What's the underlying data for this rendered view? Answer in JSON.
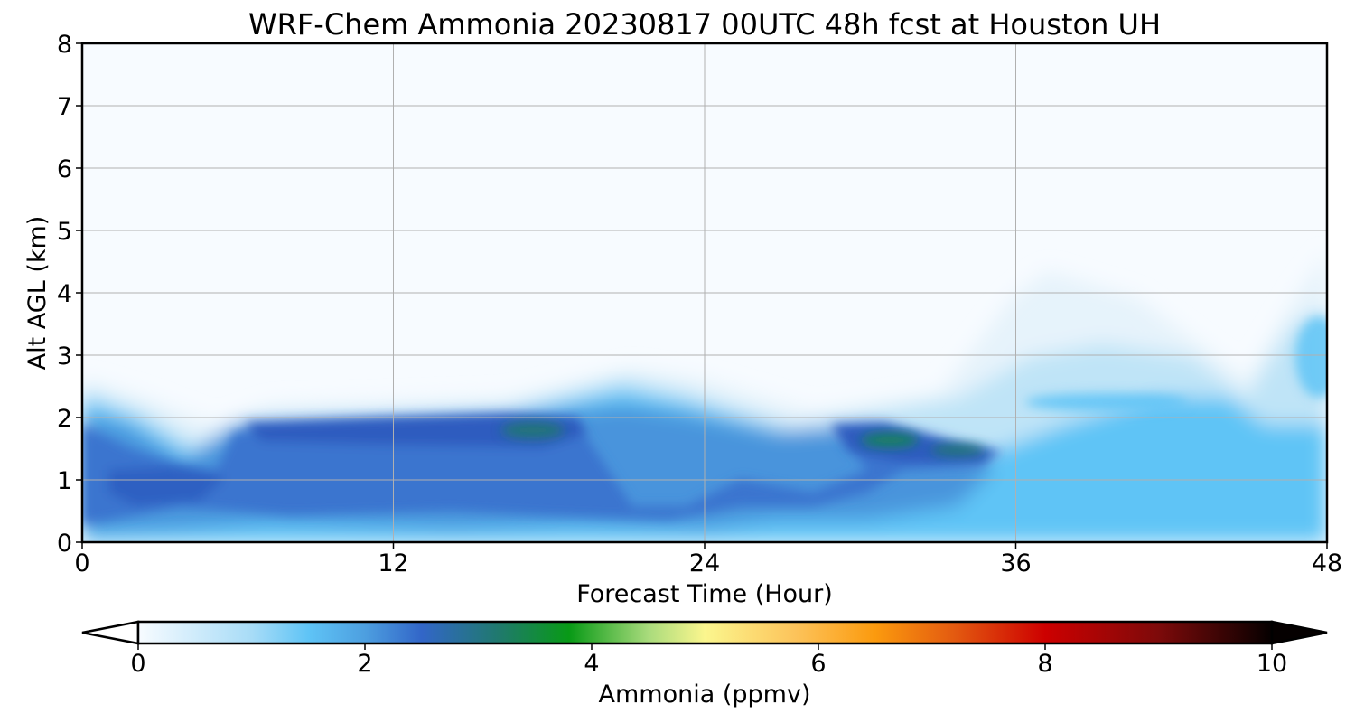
{
  "chart_data": {
    "type": "heatmap",
    "title": "WRF-Chem Ammonia  20230817 00UTC 48h fcst at Houston UH",
    "xlabel": "Forecast Time (Hour)",
    "ylabel": "Alt AGL (km)",
    "xlim": [
      0,
      48
    ],
    "ylim": [
      0,
      8
    ],
    "x_ticks": [
      "0",
      "12",
      "24",
      "36",
      "48"
    ],
    "y_ticks": [
      "0",
      "1",
      "2",
      "3",
      "4",
      "5",
      "6",
      "7",
      "8"
    ],
    "grid": true,
    "field_name": "Ammonia",
    "units": "ppmv",
    "colorbar": {
      "label": "Ammonia  (ppmv)",
      "min": 0,
      "max": 10,
      "ticks": [
        "0",
        "2",
        "4",
        "6",
        "8",
        "10"
      ],
      "extend": "both"
    },
    "features": [
      {
        "desc": "near-surface ammonia layer",
        "x_range": [
          0,
          48
        ],
        "alt_top_km": [
          2.0,
          2.6
        ],
        "value_ppmv": [
          1.0,
          2.5
        ]
      },
      {
        "desc": "maximum band",
        "x_range": [
          6,
          19
        ],
        "alt_km": [
          1.6,
          2.0
        ],
        "value_ppmv": [
          2.5,
          3.5
        ]
      },
      {
        "desc": "maximum band",
        "x_range": [
          29,
          35
        ],
        "alt_km": [
          1.3,
          1.8
        ],
        "value_ppmv": [
          2.8,
          3.5
        ]
      },
      {
        "desc": "elevated layer",
        "x_range": [
          36,
          44
        ],
        "alt_km": [
          2.1,
          2.5
        ],
        "value_ppmv": [
          1.0,
          2.0
        ]
      },
      {
        "desc": "elevated layer",
        "x_range": [
          46,
          48
        ],
        "alt_km": [
          2.5,
          3.5
        ],
        "value_ppmv": [
          1.0,
          1.5
        ]
      }
    ]
  }
}
